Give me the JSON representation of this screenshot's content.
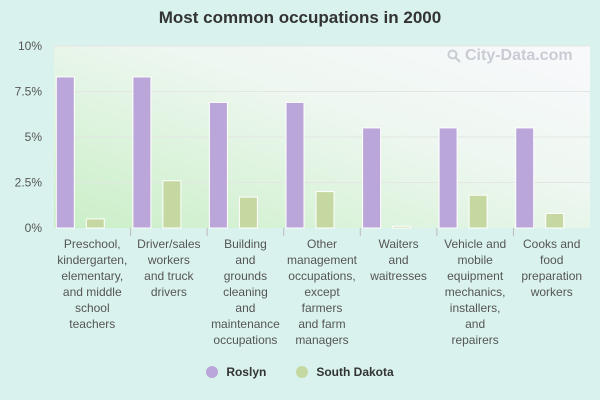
{
  "chart_data": {
    "type": "bar",
    "title": "Most common occupations in 2000",
    "categories": [
      [
        "Preschool,",
        "kindergarten,",
        "elementary,",
        "and middle",
        "school",
        "teachers"
      ],
      [
        "Driver/sales",
        "workers",
        "and truck",
        "drivers"
      ],
      [
        "Building",
        "and",
        "grounds",
        "cleaning",
        "and",
        "maintenance",
        "occupations"
      ],
      [
        "Other",
        "management",
        "occupations,",
        "except",
        "farmers",
        "and farm",
        "managers"
      ],
      [
        "Waiters",
        "and",
        "waitresses"
      ],
      [
        "Vehicle and",
        "mobile",
        "equipment",
        "mechanics,",
        "installers,",
        "and",
        "repairers"
      ],
      [
        "Cooks and",
        "food",
        "preparation",
        "workers"
      ]
    ],
    "series": [
      {
        "name": "Roslyn",
        "color": "#bba6d9",
        "values": [
          8.3,
          8.3,
          6.9,
          6.9,
          5.5,
          5.5,
          5.5
        ]
      },
      {
        "name": "South Dakota",
        "color": "#c6d8a2",
        "values": [
          0.5,
          2.6,
          1.7,
          2.0,
          0.1,
          1.8,
          0.8
        ]
      }
    ],
    "ylim": [
      0,
      10
    ],
    "yticks": [
      0,
      2.5,
      5,
      7.5,
      10
    ],
    "ytick_labels": [
      "0%",
      "2.5%",
      "5%",
      "7.5%",
      "10%"
    ],
    "grid": true,
    "legend_position": "bottom"
  },
  "watermark": {
    "text": "City-Data.com",
    "icon": "magnifier-icon"
  }
}
